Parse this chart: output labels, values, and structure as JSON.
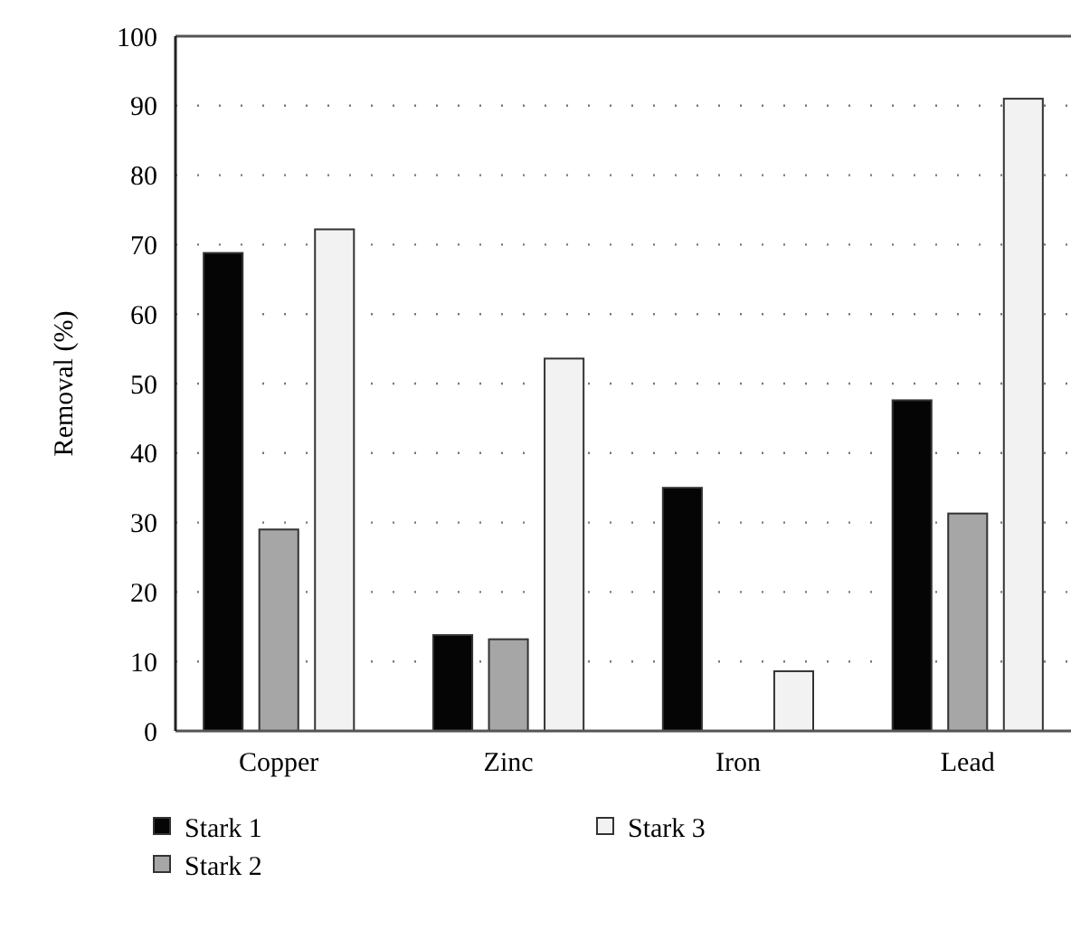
{
  "chart_data": {
    "type": "bar",
    "ylabel": "Removal (%)",
    "categories": [
      "Copper",
      "Zinc",
      "Iron",
      "Lead"
    ],
    "series": [
      {
        "name": "Stark 1",
        "color": "#050505",
        "values": [
          68.8,
          13.8,
          35,
          47.6
        ]
      },
      {
        "name": "Stark 2",
        "color": "#a6a6a6",
        "values": [
          29,
          13.2,
          null,
          31.3
        ]
      },
      {
        "name": "Stark 3",
        "color": "#f1f2f1",
        "values": [
          72.2,
          53.6,
          8.6,
          91
        ]
      }
    ],
    "ylim": [
      0,
      100
    ],
    "yticks": [
      0,
      10,
      20,
      30,
      40,
      50,
      60,
      70,
      80,
      90,
      100
    ],
    "grid": "y",
    "legend": "bottom"
  }
}
